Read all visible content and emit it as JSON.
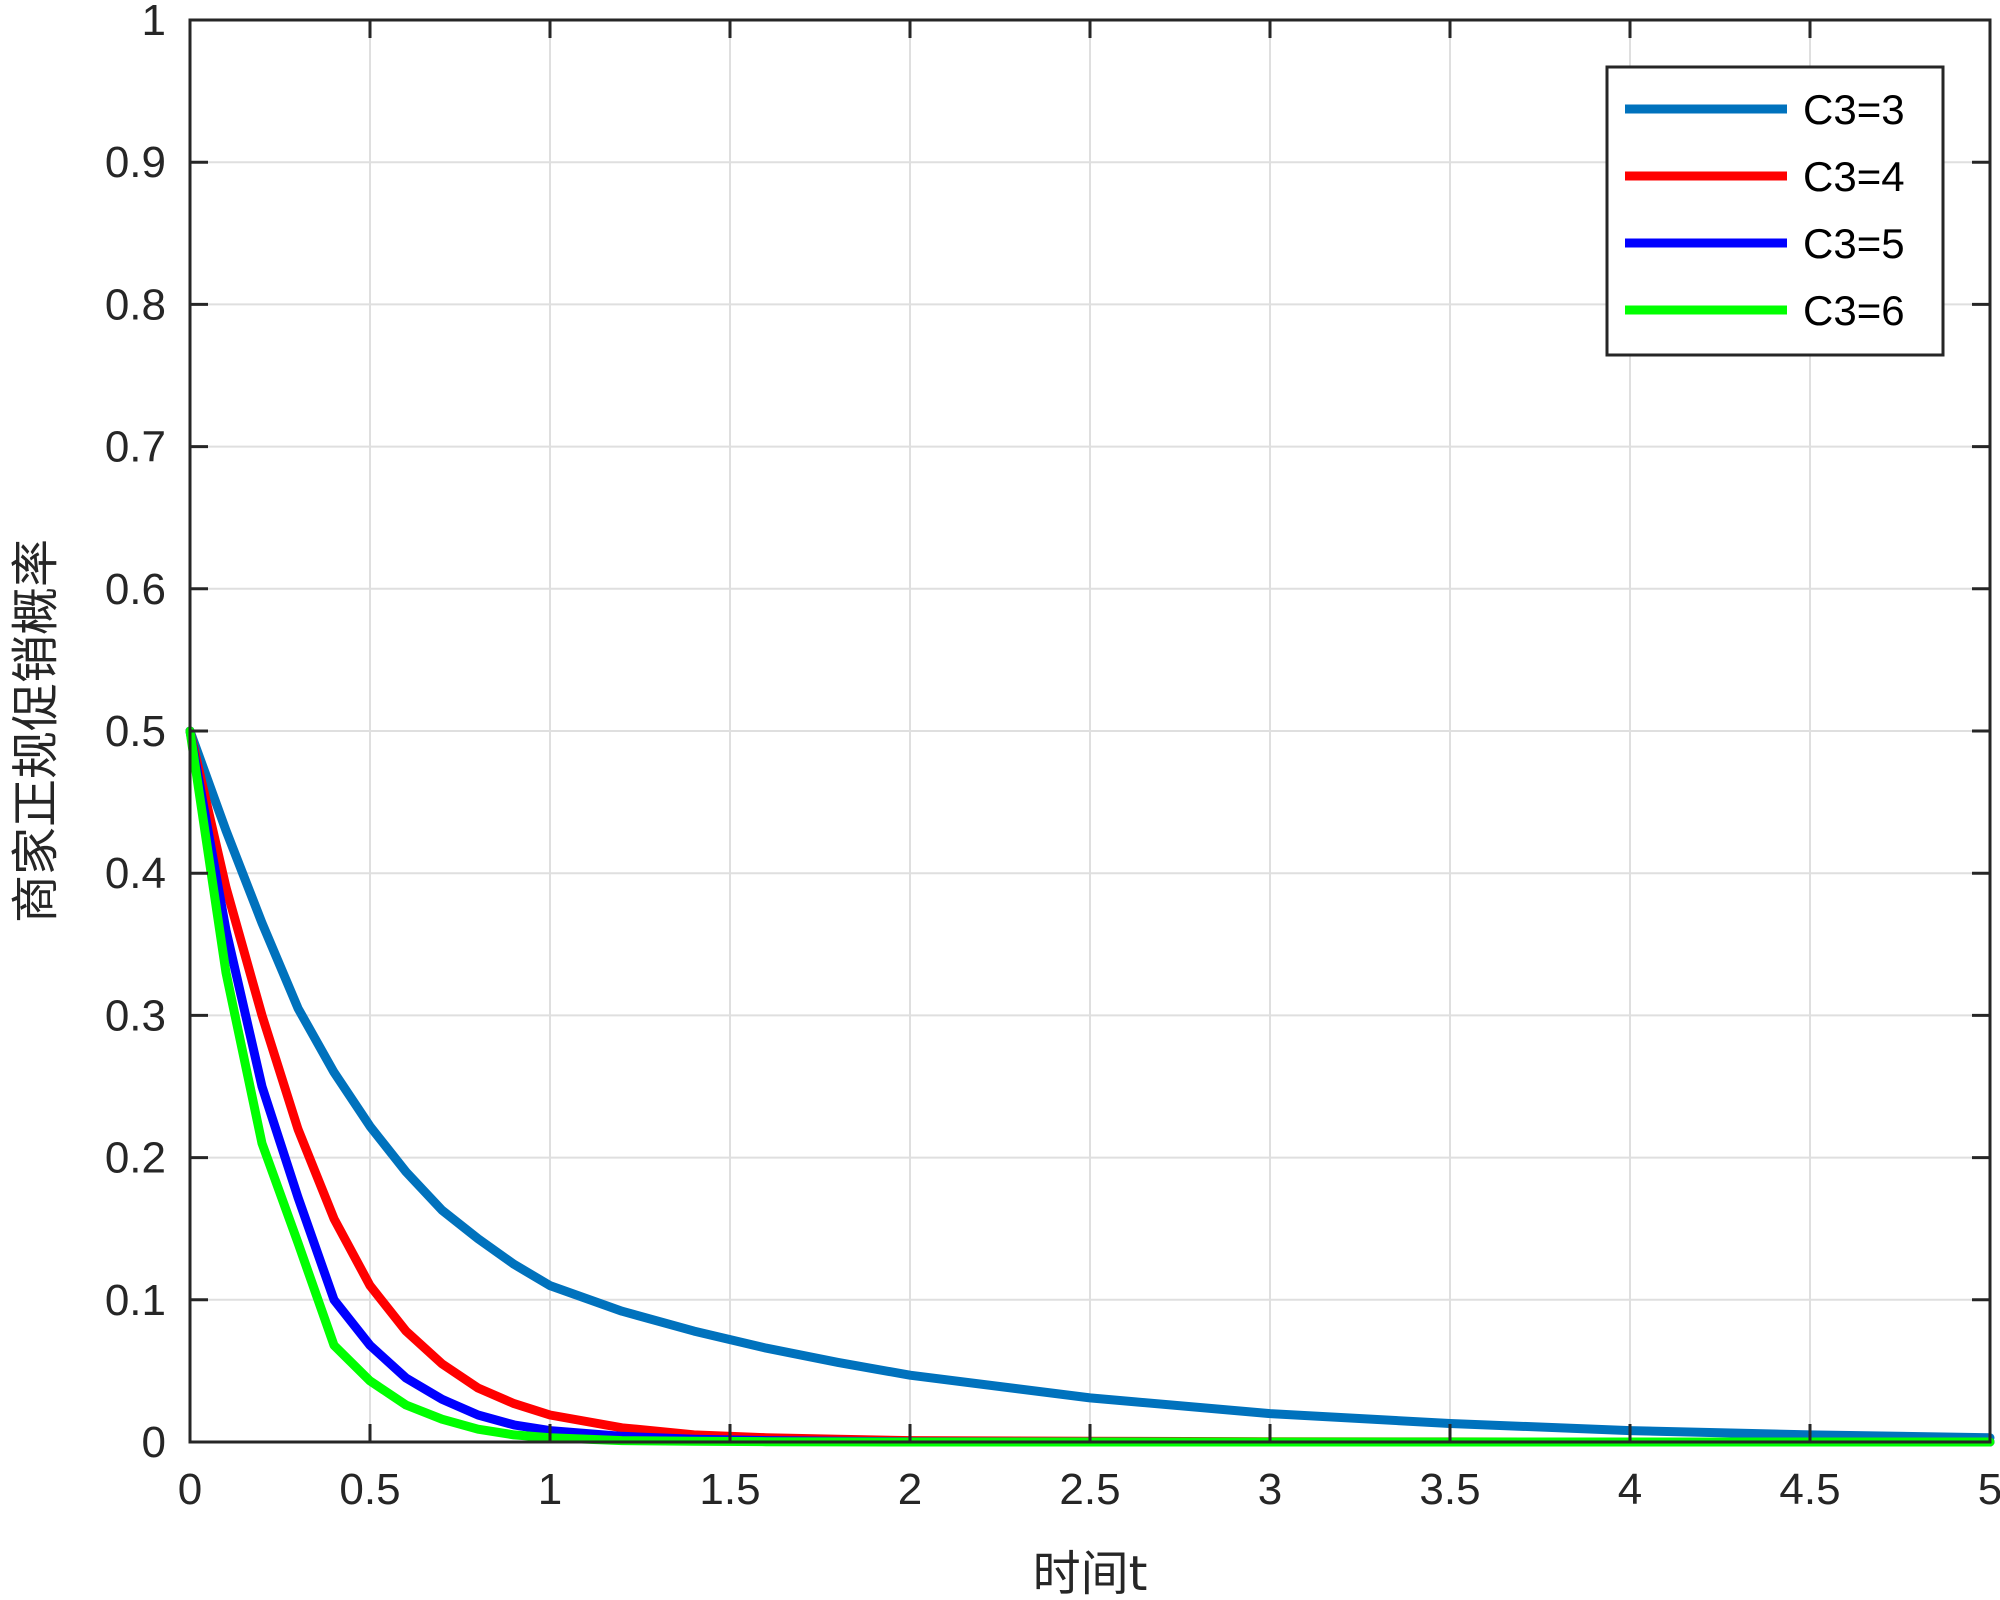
{
  "chart_data": {
    "type": "line",
    "title": "",
    "xlabel": "时间t",
    "ylabel": "商家正规促销概率",
    "xlim": [
      0,
      5
    ],
    "ylim": [
      0,
      1
    ],
    "xticks": [
      0,
      0.5,
      1,
      1.5,
      2,
      2.5,
      3,
      3.5,
      4,
      4.5,
      5
    ],
    "xtick_labels": [
      "0",
      "0.5",
      "1",
      "1.5",
      "2",
      "2.5",
      "3",
      "3.5",
      "4",
      "4.5",
      "5"
    ],
    "yticks": [
      0,
      0.1,
      0.2,
      0.3,
      0.4,
      0.5,
      0.6,
      0.7,
      0.8,
      0.9,
      1
    ],
    "ytick_labels": [
      "0",
      "0.1",
      "0.2",
      "0.3",
      "0.4",
      "0.5",
      "0.6",
      "0.7",
      "0.8",
      "0.9",
      "1"
    ],
    "grid": true,
    "legend_position": "top-right",
    "x": [
      0,
      0.1,
      0.2,
      0.3,
      0.4,
      0.5,
      0.6,
      0.7,
      0.8,
      0.9,
      1.0,
      1.2,
      1.4,
      1.6,
      1.8,
      2.0,
      2.5,
      3.0,
      3.5,
      4.0,
      4.5,
      5.0
    ],
    "series": [
      {
        "name": "C3=3",
        "color": "#0072BD",
        "values": [
          0.5,
          0.43,
          0.365,
          0.305,
          0.26,
          0.222,
          0.19,
          0.163,
          0.143,
          0.125,
          0.11,
          0.092,
          0.078,
          0.066,
          0.056,
          0.047,
          0.031,
          0.02,
          0.013,
          0.008,
          0.005,
          0.003
        ]
      },
      {
        "name": "C3=4",
        "color": "#FF0000",
        "values": [
          0.5,
          0.39,
          0.3,
          0.22,
          0.157,
          0.11,
          0.078,
          0.055,
          0.038,
          0.027,
          0.019,
          0.01,
          0.005,
          0.003,
          0.002,
          0.001,
          0.0005,
          0.0002,
          0.0001,
          0.0,
          0.0,
          0.0
        ]
      },
      {
        "name": "C3=5",
        "color": "#0000FF",
        "values": [
          0.5,
          0.36,
          0.25,
          0.172,
          0.1,
          0.068,
          0.045,
          0.03,
          0.019,
          0.012,
          0.008,
          0.004,
          0.002,
          0.001,
          0.0005,
          0.0002,
          0.0001,
          0.0,
          0.0,
          0.0,
          0.0,
          0.0
        ]
      },
      {
        "name": "C3=6",
        "color": "#00FF00",
        "values": [
          0.5,
          0.33,
          0.21,
          0.14,
          0.068,
          0.043,
          0.026,
          0.016,
          0.009,
          0.005,
          0.003,
          0.001,
          0.0005,
          0.0002,
          0.0001,
          0.0,
          0.0,
          0.0,
          0.0,
          0.0,
          0.0,
          0.0
        ]
      }
    ]
  }
}
